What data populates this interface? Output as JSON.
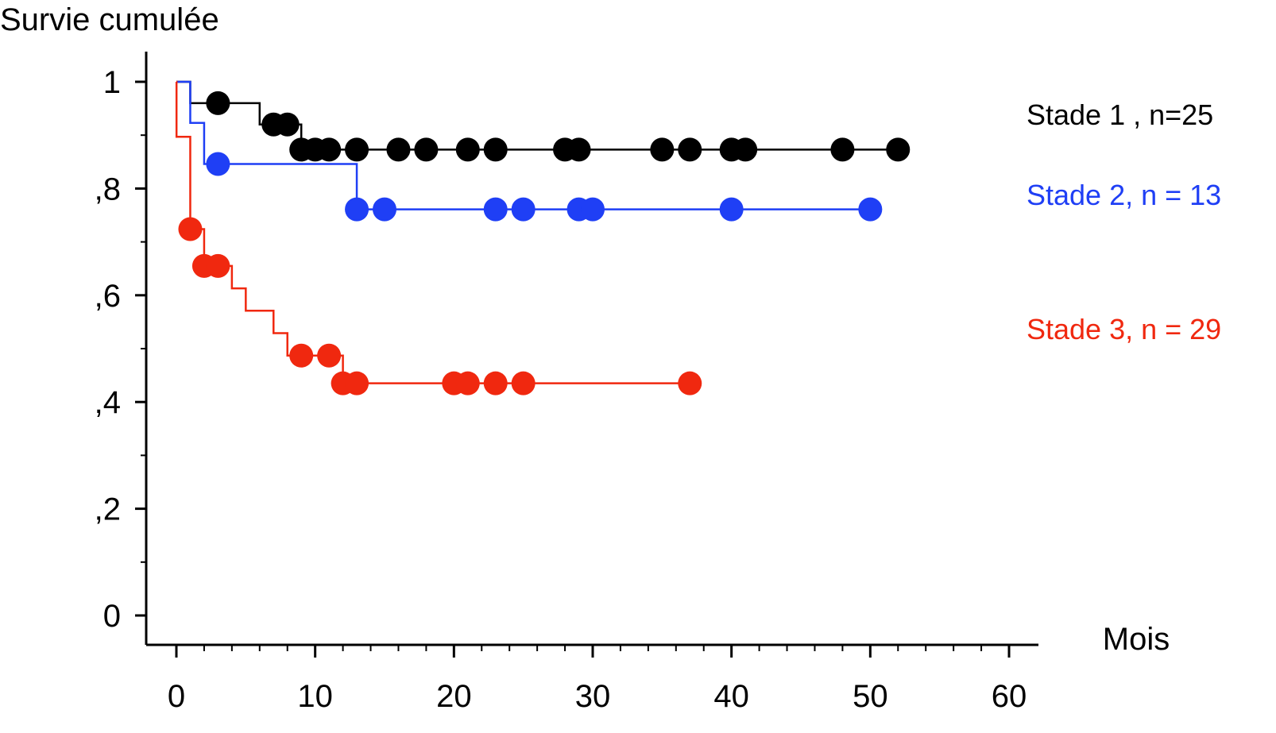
{
  "chart_data": {
    "type": "line",
    "subtype": "kaplan-meier",
    "ylabel": "Survie cumulée",
    "xlabel": "Mois",
    "xlim": [
      0,
      60
    ],
    "ylim": [
      0,
      1
    ],
    "x_ticks": [
      0,
      10,
      20,
      30,
      40,
      50,
      60
    ],
    "x_tick_labels": [
      "0",
      "10",
      "20",
      "30",
      "40",
      "50",
      "60"
    ],
    "y_ticks": [
      0,
      0.2,
      0.4,
      0.6,
      0.8,
      1
    ],
    "y_tick_labels": [
      "0",
      ",2",
      ",4",
      ",6",
      ",8",
      "1"
    ],
    "series": [
      {
        "name": "Stade 1 , n=25",
        "color": "#000000",
        "steps": [
          [
            0,
            1.0
          ],
          [
            1,
            0.96
          ],
          [
            6,
            0.92
          ],
          [
            9,
            0.873
          ],
          [
            52,
            0.873
          ]
        ],
        "censored": [
          [
            3,
            0.96
          ],
          [
            7,
            0.92
          ],
          [
            8,
            0.92
          ],
          [
            9,
            0.873
          ],
          [
            10,
            0.873
          ],
          [
            11,
            0.873
          ],
          [
            13,
            0.873
          ],
          [
            16,
            0.873
          ],
          [
            18,
            0.873
          ],
          [
            21,
            0.873
          ],
          [
            23,
            0.873
          ],
          [
            28,
            0.873
          ],
          [
            29,
            0.873
          ],
          [
            35,
            0.873
          ],
          [
            37,
            0.873
          ],
          [
            40,
            0.873
          ],
          [
            41,
            0.873
          ],
          [
            48,
            0.873
          ],
          [
            52,
            0.873
          ]
        ]
      },
      {
        "name": "Stade 2, n = 13",
        "color": "#1f3ff5",
        "steps": [
          [
            0,
            1.0
          ],
          [
            1,
            0.923
          ],
          [
            2,
            0.846
          ],
          [
            13,
            0.761
          ],
          [
            50,
            0.761
          ]
        ],
        "censored": [
          [
            3,
            0.846
          ],
          [
            13,
            0.761
          ],
          [
            15,
            0.761
          ],
          [
            23,
            0.761
          ],
          [
            25,
            0.761
          ],
          [
            29,
            0.761
          ],
          [
            30,
            0.761
          ],
          [
            40,
            0.761
          ],
          [
            50,
            0.761
          ]
        ]
      },
      {
        "name": "Stade 3, n = 29",
        "color": "#f0280f",
        "steps": [
          [
            0,
            1.0
          ],
          [
            0.01,
            0.897
          ],
          [
            1,
            0.724
          ],
          [
            2,
            0.655
          ],
          [
            4,
            0.613
          ],
          [
            5,
            0.571
          ],
          [
            7,
            0.529
          ],
          [
            8,
            0.487
          ],
          [
            12,
            0.435
          ],
          [
            37,
            0.435
          ]
        ],
        "censored": [
          [
            1,
            0.724
          ],
          [
            2,
            0.655
          ],
          [
            3,
            0.655
          ],
          [
            9,
            0.487
          ],
          [
            11,
            0.487
          ],
          [
            12,
            0.435
          ],
          [
            13,
            0.435
          ],
          [
            20,
            0.435
          ],
          [
            21,
            0.435
          ],
          [
            23,
            0.435
          ],
          [
            25,
            0.435
          ],
          [
            37,
            0.435
          ]
        ]
      }
    ],
    "legend_placement": "right",
    "grid": false
  }
}
